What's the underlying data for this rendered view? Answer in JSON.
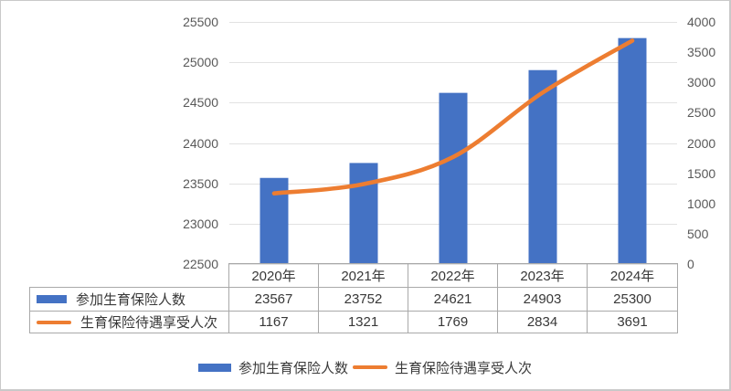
{
  "chart_data": {
    "type": "combo",
    "title": "",
    "categories": [
      "2020年",
      "2021年",
      "2022年",
      "2023年",
      "2024年"
    ],
    "series": [
      {
        "name": "参加生育保险人数",
        "type": "bar",
        "axis": "left",
        "color": "#4472C4",
        "values": [
          23567,
          23752,
          24621,
          24903,
          25300
        ]
      },
      {
        "name": "生育保险待遇享受人次",
        "type": "line",
        "axis": "right",
        "color": "#ED7D31",
        "smooth": true,
        "values": [
          1167,
          1321,
          1769,
          2834,
          3691
        ]
      }
    ],
    "left_axis": {
      "min": 22500,
      "max": 25500,
      "step": 500,
      "tick_labels": [
        "25500",
        "25000",
        "24500",
        "24000",
        "23500",
        "23000",
        "22500"
      ]
    },
    "right_axis": {
      "min": 0,
      "max": 4000,
      "step": 500,
      "tick_labels": [
        "4000",
        "3500",
        "3000",
        "2500",
        "2000",
        "1500",
        "1000",
        "500",
        "0"
      ]
    },
    "gridlines": "horizontal",
    "legend_position": "bottom",
    "data_table_visible": true
  },
  "table": {
    "year_headers": [
      "2020年",
      "2021年",
      "2022年",
      "2023年",
      "2024年"
    ],
    "rows": [
      {
        "label": "参加生育保险人数",
        "marker": "bar",
        "color": "#4472C4",
        "values": [
          "23567",
          "23752",
          "24621",
          "24903",
          "25300"
        ]
      },
      {
        "label": "生育保险待遇享受人次",
        "marker": "line",
        "color": "#ED7D31",
        "values": [
          "1167",
          "1321",
          "1769",
          "2834",
          "3691"
        ]
      }
    ]
  },
  "legend": {
    "items": [
      {
        "label": "参加生育保险人数",
        "marker": "bar",
        "color": "#4472C4"
      },
      {
        "label": "生育保险待遇享受人次",
        "marker": "line",
        "color": "#ED7D31"
      }
    ]
  },
  "colors": {
    "bar": "#4472C4",
    "line": "#ED7D31",
    "gridline": "#E2E2E2",
    "axis_text": "#595959",
    "table_border": "#A9A9A9",
    "table_text": "#383838"
  }
}
